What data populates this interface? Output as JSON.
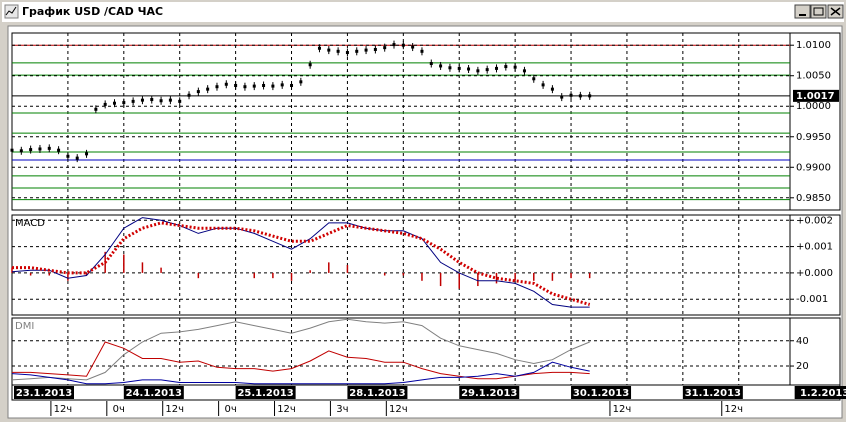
{
  "window": {
    "title": "График USD /CAD  ЧАС"
  },
  "chart_data": [
    {
      "type": "candlestick",
      "color": "#000000",
      "grid": true,
      "x": [
        0,
        2,
        4,
        6,
        8,
        10,
        12,
        14,
        16,
        18,
        20,
        22,
        24,
        26,
        28,
        30,
        32,
        34,
        36,
        38,
        40,
        42,
        44,
        46,
        48,
        50,
        52,
        54,
        56,
        58,
        60,
        62,
        64,
        66,
        68,
        70,
        72,
        74,
        76,
        78,
        80,
        82,
        84,
        86,
        88,
        90,
        92,
        94,
        96,
        98,
        100,
        102,
        104,
        106,
        108,
        110,
        112,
        114,
        116,
        118,
        120,
        122,
        124
      ],
      "values": [
        0.9928,
        0.9927,
        0.9929,
        0.993,
        0.9931,
        0.9928,
        0.9918,
        0.9915,
        0.9922,
        0.9995,
        1.0003,
        1.0005,
        1.0006,
        1.0008,
        1.001,
        1.0011,
        1.0009,
        1.001,
        1.0008,
        1.0018,
        1.0024,
        1.0028,
        1.0032,
        1.0036,
        1.0034,
        1.0032,
        1.0033,
        1.0034,
        1.0033,
        1.0035,
        1.0034,
        1.004,
        1.0068,
        1.0095,
        1.0092,
        1.009,
        1.0088,
        1.009,
        1.0092,
        1.0093,
        1.0096,
        1.0101,
        1.01,
        1.0097,
        1.009,
        1.007,
        1.0066,
        1.0063,
        1.0062,
        1.0061,
        1.0058,
        1.006,
        1.0062,
        1.0065,
        1.0064,
        1.0058,
        1.0045,
        1.0035,
        1.0028,
        1.0015,
        1.0018,
        1.0017,
        1.0017
      ],
      "last_price": 1.0017,
      "levels": [
        {
          "value": 1.01,
          "color": "#c00000"
        },
        {
          "value": 1.0071,
          "color": "#008000"
        },
        {
          "value": 1.0051,
          "color": "#008000"
        },
        {
          "value": 0.9989,
          "color": "#008000"
        },
        {
          "value": 0.9956,
          "color": "#008000"
        },
        {
          "value": 0.9925,
          "color": "#008000"
        },
        {
          "value": 0.9912,
          "color": "#0000c0"
        },
        {
          "value": 0.9886,
          "color": "#008000"
        },
        {
          "value": 0.9866,
          "color": "#008000"
        },
        {
          "value": 0.9847,
          "color": "#008000"
        }
      ],
      "xlim": [
        0,
        167
      ],
      "ylim": [
        0.983,
        1.012
      ],
      "yticks": [
        {
          "value": 1.01,
          "label": "1.0100"
        },
        {
          "value": 1.005,
          "label": "1.0050"
        },
        {
          "value": 1.0,
          "label": "1.0000"
        },
        {
          "value": 0.995,
          "label": "0.9950"
        },
        {
          "value": 0.99,
          "label": "0.9900"
        },
        {
          "value": 0.985,
          "label": "0.9850"
        }
      ]
    },
    {
      "type": "line",
      "title": "MACD",
      "grid": true,
      "x": [
        0,
        4,
        8,
        12,
        16,
        20,
        24,
        28,
        32,
        36,
        40,
        44,
        48,
        52,
        56,
        60,
        64,
        68,
        72,
        76,
        80,
        84,
        88,
        92,
        96,
        100,
        104,
        108,
        112,
        116,
        120,
        124
      ],
      "series": [
        {
          "kind": "bar",
          "color": "#c00000",
          "values": [
            0.0002,
            -0.0001,
            -0.0001,
            -0.0003,
            -0.0001,
            0.0008,
            0.0007,
            0.0004,
            0.0002,
            0.0,
            -0.0002,
            0.0,
            0.0,
            -0.0002,
            -0.0002,
            -0.0003,
            0.0001,
            0.0004,
            0.0003,
            0.0,
            -0.0001,
            -0.0001,
            -0.0003,
            -0.0005,
            -0.0006,
            -0.0005,
            -0.0004,
            -0.0003,
            -0.0003,
            -0.0003,
            -0.0002,
            -0.0002
          ]
        },
        {
          "kind": "line",
          "color": "#000080",
          "values": [
            4e-05,
            0.0001,
            0.0001,
            -0.0002,
            -0.0001,
            0.0007,
            0.0017,
            0.0021,
            0.002,
            0.0018,
            0.0015,
            0.0017,
            0.0017,
            0.0015,
            0.0012,
            0.0009,
            0.0013,
            0.0019,
            0.0019,
            0.0017,
            0.0016,
            0.0016,
            0.0013,
            0.0004,
            0.0,
            -0.0003,
            -0.0003,
            -0.0004,
            -0.0007,
            -0.0012,
            -0.0013,
            -0.0013
          ]
        },
        {
          "kind": "dots",
          "color": "#d00000",
          "values": [
            0.0002,
            0.0002,
            0.0001,
            0.0,
            0.0,
            0.0004,
            0.0013,
            0.0017,
            0.0019,
            0.0018,
            0.0017,
            0.0017,
            0.0017,
            0.0016,
            0.0014,
            0.0012,
            0.0012,
            0.0015,
            0.0018,
            0.0017,
            0.0016,
            0.0015,
            0.0013,
            0.0009,
            0.0004,
            0.0,
            -0.0002,
            -0.0003,
            -0.0004,
            -0.0008,
            -0.001,
            -0.0012
          ]
        }
      ],
      "xlim": [
        0,
        167
      ],
      "ylim": [
        -0.0016,
        0.0022
      ],
      "yticks": [
        {
          "value": 0.002,
          "label": "+0.002"
        },
        {
          "value": 0.001,
          "label": "+0.001"
        },
        {
          "value": 0,
          "label": "+0.000"
        },
        -0.001
      ]
    },
    {
      "type": "line",
      "title": "DMI",
      "grid": true,
      "x": [
        0,
        4,
        8,
        12,
        16,
        20,
        24,
        28,
        32,
        36,
        40,
        44,
        48,
        52,
        56,
        60,
        64,
        68,
        72,
        76,
        80,
        84,
        88,
        92,
        96,
        100,
        104,
        108,
        112,
        116,
        120,
        124
      ],
      "series": [
        {
          "kind": "line",
          "color": "#808080",
          "values": [
            9,
            10,
            11,
            10,
            9,
            15,
            29,
            39,
            46,
            47,
            49,
            52,
            55,
            52,
            49,
            46,
            50,
            55,
            57,
            55,
            54,
            55,
            52,
            42,
            36,
            33,
            30,
            25,
            22,
            25,
            33,
            39
          ]
        },
        {
          "kind": "line",
          "color": "#c00000",
          "values": [
            15,
            15,
            14,
            13,
            12,
            39,
            34,
            26,
            26,
            23,
            24,
            19,
            18,
            18,
            16,
            18,
            24,
            32,
            27,
            26,
            23,
            23,
            18,
            14,
            12,
            10,
            10,
            12,
            14,
            15,
            15,
            14
          ]
        },
        {
          "kind": "line",
          "color": "#0000a0",
          "values": [
            14,
            13,
            11,
            9,
            6,
            6,
            7,
            9,
            9,
            7,
            7,
            7,
            7,
            6,
            6,
            6,
            6,
            6,
            6,
            6,
            6,
            7,
            9,
            11,
            11,
            12,
            14,
            12,
            15,
            23,
            19,
            16
          ]
        }
      ],
      "xlim": [
        0,
        167
      ],
      "ylim": [
        5,
        58
      ],
      "yticks": [
        20,
        40
      ],
      "xgrid": [
        12,
        24,
        36,
        48,
        60,
        72,
        84,
        96,
        108,
        120,
        132,
        144,
        156
      ],
      "xticks": [
        {
          "value": 0,
          "label": "23.1.2013"
        },
        {
          "value": 24,
          "label": "24.1.2013"
        },
        {
          "value": 48,
          "label": "25.1.2013"
        },
        {
          "value": 72,
          "label": "28.1.2013"
        },
        {
          "value": 96,
          "label": "29.1.2013"
        },
        {
          "value": 120,
          "label": "30.1.2013"
        },
        {
          "value": 144,
          "label": "31.1.2013"
        },
        {
          "value": 168,
          "label": "1.2.2013"
        }
      ],
      "hour_ticks": [
        {
          "value": 12,
          "label": "12ч"
        },
        {
          "value": 24,
          "label": "0ч"
        },
        {
          "value": 36,
          "label": "12ч"
        },
        {
          "value": 48,
          "label": "0ч"
        },
        {
          "value": 60,
          "label": "12ч"
        },
        {
          "value": 72,
          "label": "3ч"
        },
        {
          "value": 84,
          "label": "12ч"
        },
        {
          "value": 132,
          "label": "12ч"
        },
        {
          "value": 156,
          "label": "12ч"
        }
      ]
    }
  ]
}
